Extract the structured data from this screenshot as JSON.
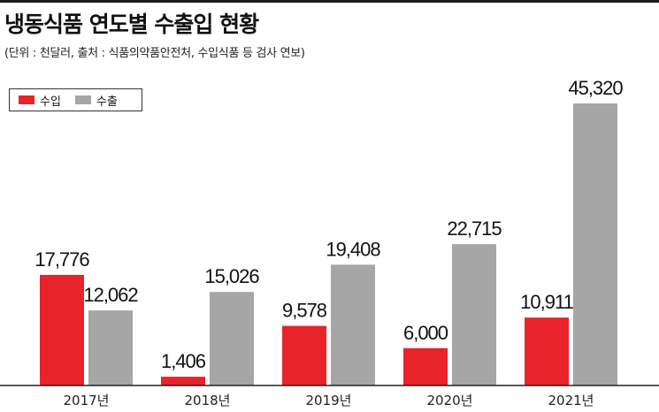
{
  "header": {
    "title": "냉동식품 연도별 수출입 현황",
    "subtitle": "(단위 : 천달러, 출처 : 식품의약품안전처, 수입식품 등 검사 연보)"
  },
  "colors": {
    "import": "#e8232a",
    "export": "#a6a6a6",
    "axis": "#222222"
  },
  "chart_data": {
    "type": "bar",
    "title": "냉동식품 연도별 수출입 현황",
    "subtitle": "(단위 : 천달러, 출처 : 식품의약품안전처, 수입식품 등 검사 연보)",
    "categories": [
      "2017년",
      "2018년",
      "2019년",
      "2020년",
      "2021년"
    ],
    "series": [
      {
        "name": "수입",
        "values": [
          17776,
          1406,
          9578,
          6000,
          10911
        ],
        "labels": [
          "17,776",
          "1,406",
          "9,578",
          "6,000",
          "10,911"
        ]
      },
      {
        "name": "수출",
        "values": [
          12062,
          15026,
          19408,
          22715,
          45320
        ],
        "labels": [
          "12,062",
          "15,026",
          "19,408",
          "22,715",
          "45,320"
        ]
      }
    ],
    "ylim": [
      0,
      45320
    ],
    "grid": false,
    "legend_position": "top-left"
  }
}
